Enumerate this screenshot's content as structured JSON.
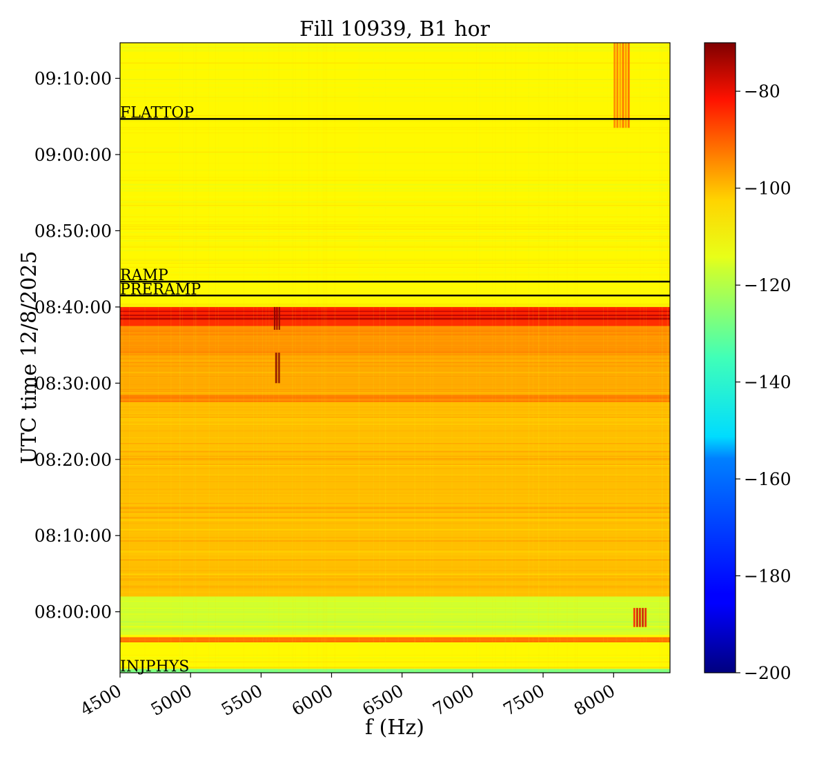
{
  "chart_data": {
    "type": "heatmap",
    "title": "Fill 10939, B1 hor",
    "xlabel": "f (Hz)",
    "ylabel": "UTC time 12/8/2025",
    "xlim": [
      4500,
      8400
    ],
    "ylim": [
      "07:52:00",
      "09:14:40"
    ],
    "x_ticks": [
      4500,
      5000,
      5500,
      6000,
      6500,
      7000,
      7500,
      8000
    ],
    "y_ticks": [
      "08:00:00",
      "08:10:00",
      "08:20:00",
      "08:30:00",
      "08:40:00",
      "08:50:00",
      "09:00:00",
      "09:10:00"
    ],
    "colorbar": {
      "colormap": "jet",
      "range": [
        -200,
        -70
      ],
      "ticks": [
        -80,
        -100,
        -120,
        -140,
        -160,
        -180,
        -200
      ],
      "tick_labels": [
        "−80",
        "−100",
        "−120",
        "−140",
        "−160",
        "−180",
        "−200"
      ]
    },
    "background_level": -118,
    "regions": [
      {
        "t_start": "07:52:00",
        "t_end": "07:52:30",
        "level": -135
      },
      {
        "t_start": "07:56:00",
        "t_end": "07:56:40",
        "level": -100
      },
      {
        "t_start": "07:57:00",
        "t_end": "08:02:00",
        "level": -125
      },
      {
        "t_start": "08:02:00",
        "t_end": "08:27:30",
        "level": -110
      },
      {
        "t_start": "08:27:30",
        "t_end": "08:28:30",
        "level": -102
      },
      {
        "t_start": "08:28:30",
        "t_end": "08:34:00",
        "level": -107
      },
      {
        "t_start": "08:34:00",
        "t_end": "08:37:30",
        "level": -104
      },
      {
        "t_start": "08:37:30",
        "t_end": "08:40:00",
        "level": -90
      }
    ],
    "hot_lines": [
      {
        "t_start": "08:38:20",
        "t_end": "08:38:35",
        "level": -75
      },
      {
        "t_start": "08:38:50",
        "t_end": "08:39:00",
        "level": -75
      },
      {
        "t_start": "08:39:20",
        "t_end": "08:39:30",
        "level": -78
      }
    ],
    "spots": [
      {
        "f_start": 5590,
        "f_end": 5640,
        "t_start": "08:37:00",
        "t_end": "08:40:00",
        "level": -72
      },
      {
        "f_start": 5600,
        "f_end": 5640,
        "t_start": "08:30:00",
        "t_end": "08:34:00",
        "level": -74
      },
      {
        "f_start": 8000,
        "f_end": 8120,
        "t_start": "09:03:30",
        "t_end": "09:14:40",
        "level": -102
      },
      {
        "f_start": 8140,
        "f_end": 8240,
        "t_start": "07:58:00",
        "t_end": "08:00:30",
        "level": -85
      }
    ],
    "markers": [
      {
        "label": "FLATTOP",
        "time": "09:04:40"
      },
      {
        "label": "RAMP",
        "time": "08:43:20"
      },
      {
        "label": "PRERAMP",
        "time": "08:41:30"
      },
      {
        "label": "INJPHYS",
        "time": "07:52:00"
      }
    ]
  }
}
